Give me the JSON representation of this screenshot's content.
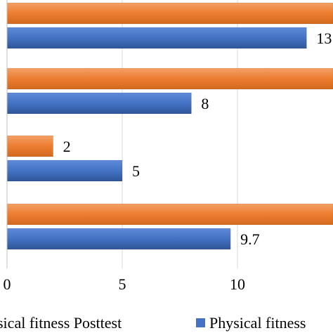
{
  "chart_data": {
    "type": "bar",
    "orientation": "horizontal",
    "xlim": [
      0,
      14.2
    ],
    "x_ticks": [
      {
        "value": 0,
        "label": "0"
      },
      {
        "value": 5,
        "label": "5"
      },
      {
        "value": 10,
        "label": "10"
      }
    ],
    "grid": true,
    "legend_position": "bottom",
    "groups": [
      {
        "bars": [
          {
            "series": "Physical fitness Posttest",
            "value": 14.2,
            "label": ""
          },
          {
            "series": "Physical fitness Pretest",
            "value": 13,
            "label": "13"
          }
        ]
      },
      {
        "bars": [
          {
            "series": "Physical fitness Posttest",
            "value": 14.2,
            "label": ""
          },
          {
            "series": "Physical fitness Pretest",
            "value": 8,
            "label": "8"
          }
        ]
      },
      {
        "bars": [
          {
            "series": "Physical fitness Posttest",
            "value": 2,
            "label": "2"
          },
          {
            "series": "Physical fitness Pretest",
            "value": 5,
            "label": "5"
          }
        ]
      },
      {
        "bars": [
          {
            "series": "Physical fitness Posttest",
            "value": 14.2,
            "label": ""
          },
          {
            "series": "Physical fitness Pretest",
            "value": 9.7,
            "label": "9.7"
          }
        ]
      }
    ],
    "series": [
      {
        "name": "Physical fitness Posttest",
        "legend_text": "sical fitness Posttest",
        "color": "#ED7D31"
      },
      {
        "name": "Physical fitness Pretest",
        "legend_text": "Physical fitness",
        "color": "#4472C4"
      }
    ]
  }
}
